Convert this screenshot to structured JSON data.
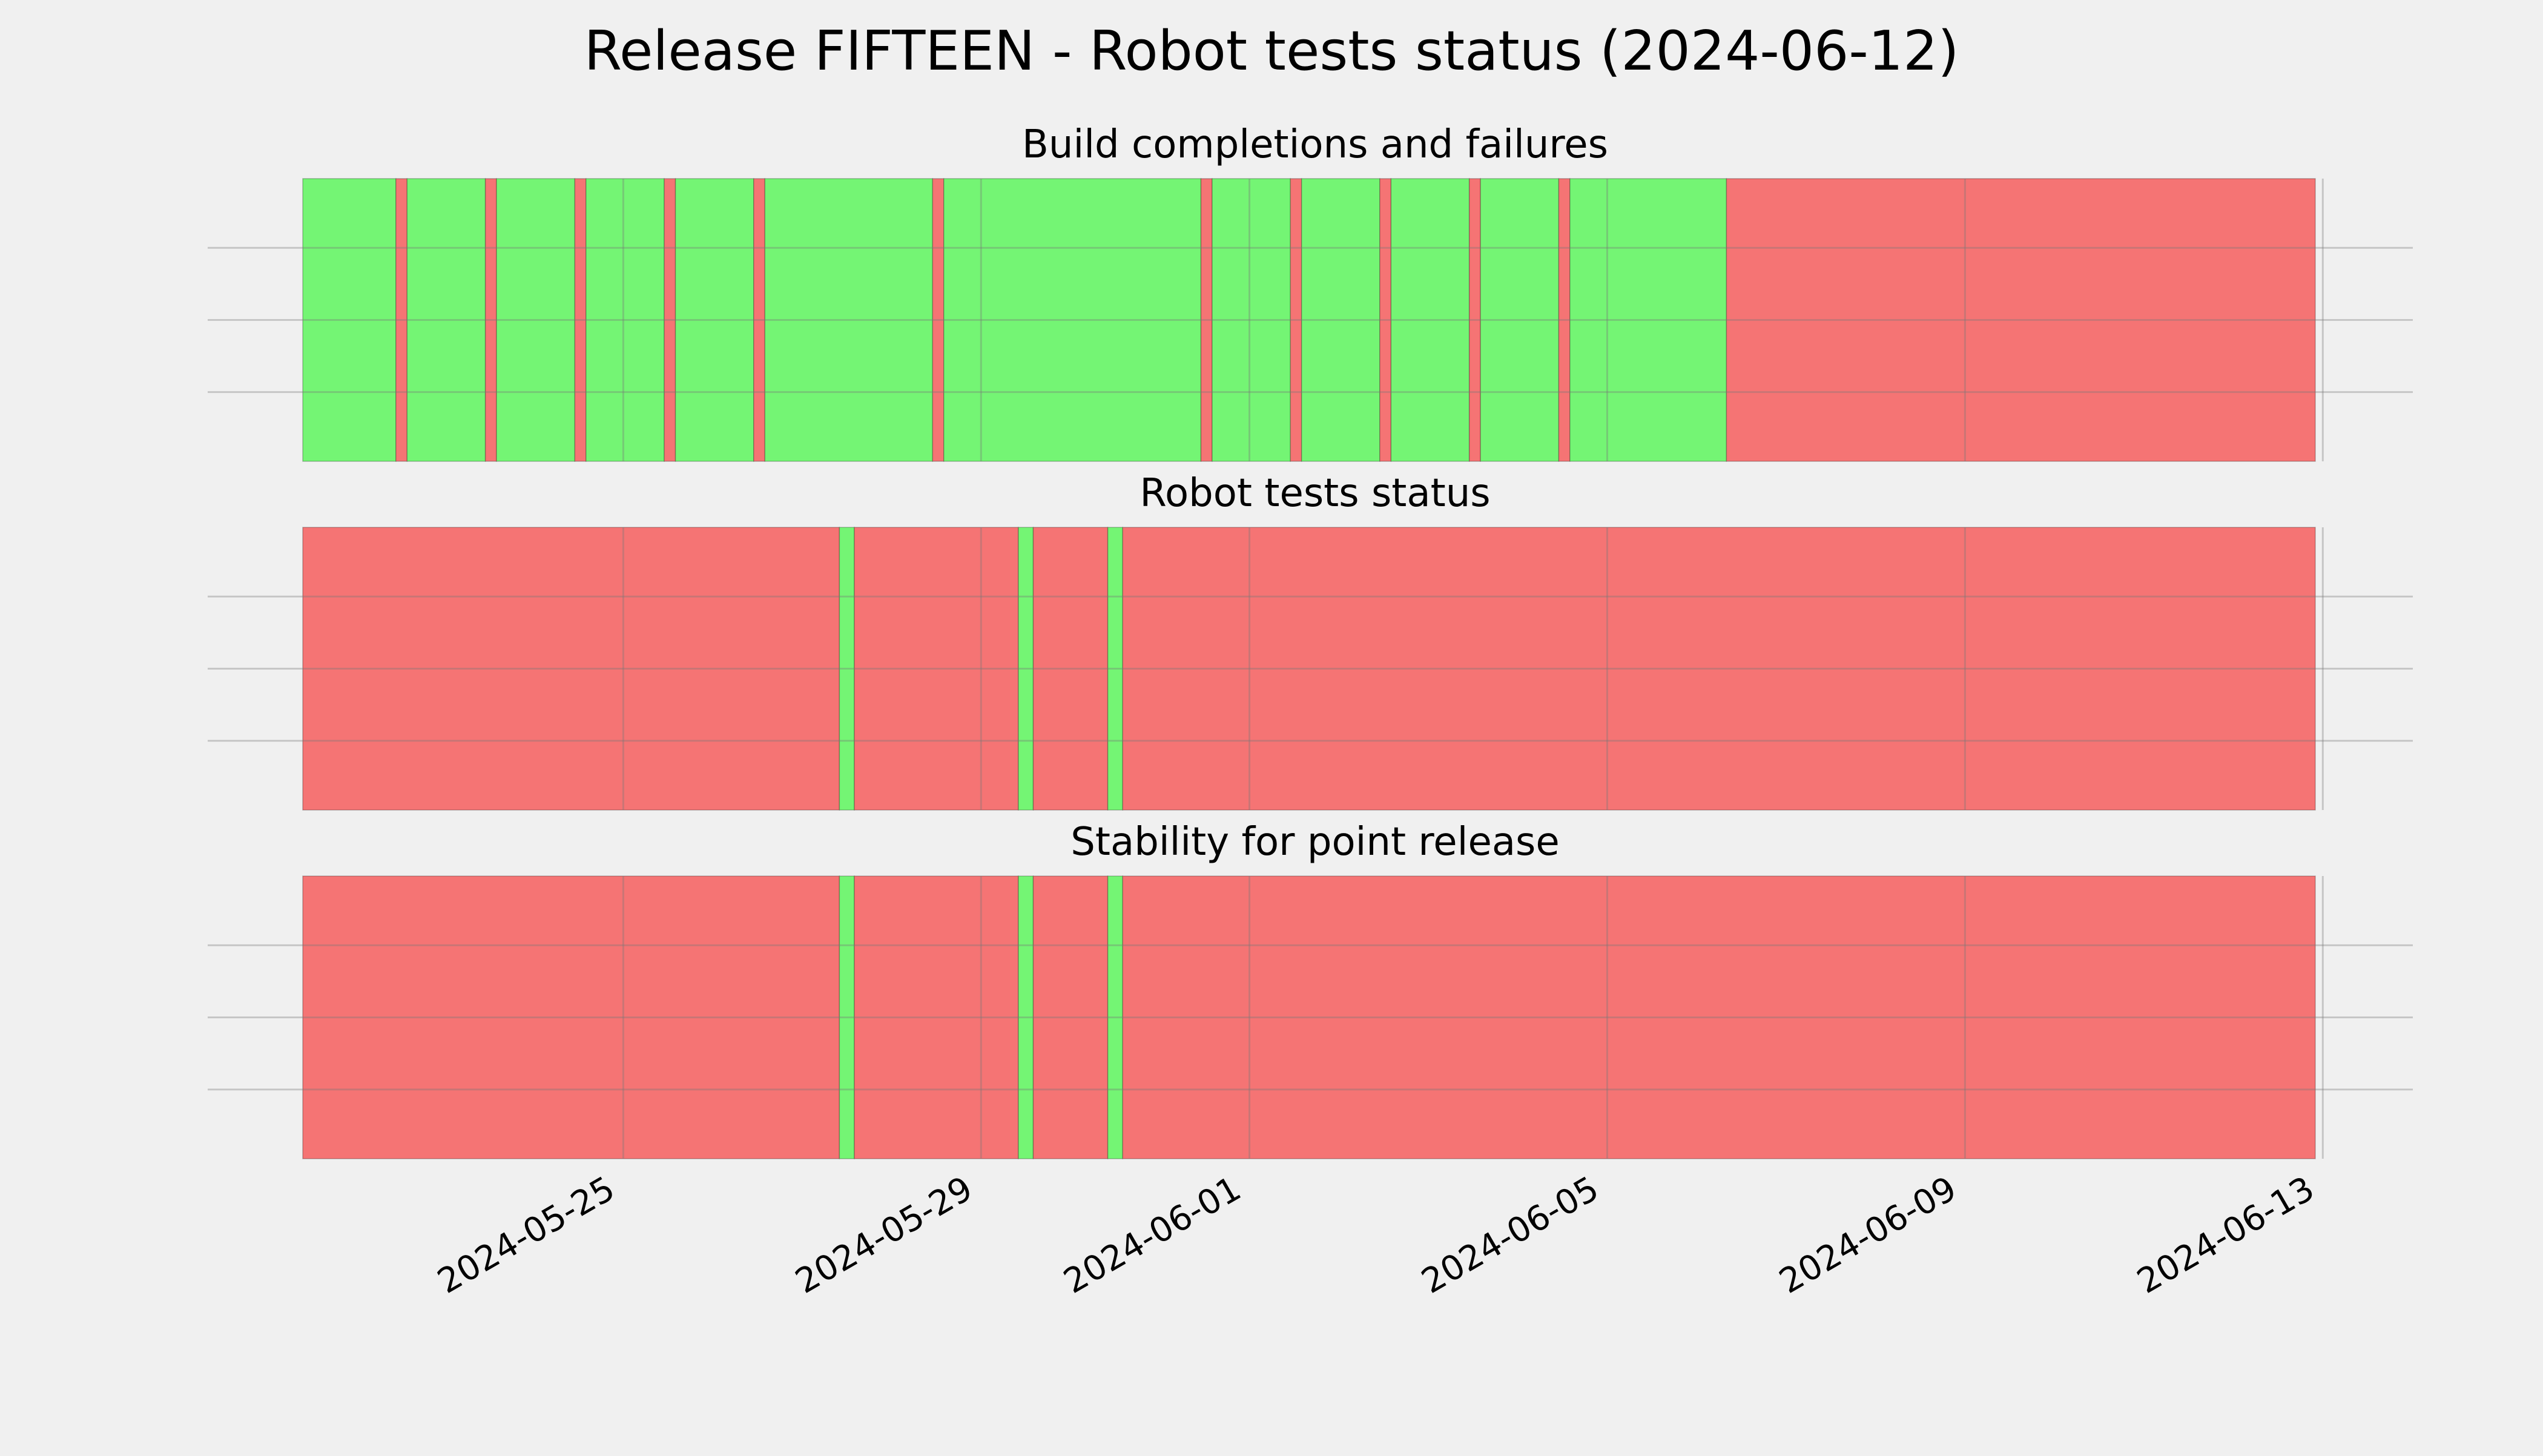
{
  "chart_data": {
    "type": "bar",
    "title": "Release FIFTEEN - Robot tests status (2024-06-12)",
    "xlim": [
      "2024-05-21T10:00",
      "2024-06-12T22:00"
    ],
    "x_ticks": [
      "2024-05-25",
      "2024-05-29",
      "2024-06-01",
      "2024-06-05",
      "2024-06-09",
      "2024-06-13"
    ],
    "grid": true,
    "colors": {
      "pass": "#74f574",
      "fail": "#f57474",
      "background": "#f0f0f0",
      "grid": "#cbcbcb"
    },
    "panels": [
      {
        "title": "Build completions and failures",
        "segments": [
          {
            "start": "2024-05-21T10:00",
            "end": "2024-05-22T11:00",
            "status": "pass"
          },
          {
            "start": "2024-05-22T11:00",
            "end": "2024-05-22T14:00",
            "status": "fail"
          },
          {
            "start": "2024-05-22T14:00",
            "end": "2024-05-23T11:00",
            "status": "pass"
          },
          {
            "start": "2024-05-23T11:00",
            "end": "2024-05-23T14:00",
            "status": "fail"
          },
          {
            "start": "2024-05-23T14:00",
            "end": "2024-05-24T11:00",
            "status": "pass"
          },
          {
            "start": "2024-05-24T11:00",
            "end": "2024-05-24T14:00",
            "status": "fail"
          },
          {
            "start": "2024-05-24T14:00",
            "end": "2024-05-25T11:00",
            "status": "pass"
          },
          {
            "start": "2024-05-25T11:00",
            "end": "2024-05-25T14:00",
            "status": "fail"
          },
          {
            "start": "2024-05-25T14:00",
            "end": "2024-05-26T11:00",
            "status": "pass"
          },
          {
            "start": "2024-05-26T11:00",
            "end": "2024-05-26T14:00",
            "status": "fail"
          },
          {
            "start": "2024-05-26T14:00",
            "end": "2024-05-28T11:00",
            "status": "pass"
          },
          {
            "start": "2024-05-28T11:00",
            "end": "2024-05-28T14:00",
            "status": "fail"
          },
          {
            "start": "2024-05-28T14:00",
            "end": "2024-05-31T11:00",
            "status": "pass"
          },
          {
            "start": "2024-05-31T11:00",
            "end": "2024-05-31T14:00",
            "status": "fail"
          },
          {
            "start": "2024-05-31T14:00",
            "end": "2024-06-01T11:00",
            "status": "pass"
          },
          {
            "start": "2024-06-01T11:00",
            "end": "2024-06-01T14:00",
            "status": "fail"
          },
          {
            "start": "2024-06-01T14:00",
            "end": "2024-06-02T11:00",
            "status": "pass"
          },
          {
            "start": "2024-06-02T11:00",
            "end": "2024-06-02T14:00",
            "status": "fail"
          },
          {
            "start": "2024-06-02T14:00",
            "end": "2024-06-03T11:00",
            "status": "pass"
          },
          {
            "start": "2024-06-03T11:00",
            "end": "2024-06-03T14:00",
            "status": "fail"
          },
          {
            "start": "2024-06-03T14:00",
            "end": "2024-06-04T11:00",
            "status": "pass"
          },
          {
            "start": "2024-06-04T11:00",
            "end": "2024-06-04T14:00",
            "status": "fail"
          },
          {
            "start": "2024-06-04T14:00",
            "end": "2024-06-06T08:00",
            "status": "pass"
          },
          {
            "start": "2024-06-06T08:00",
            "end": "2024-06-12T22:00",
            "status": "fail"
          }
        ]
      },
      {
        "title": "Robot tests status",
        "segments": [
          {
            "start": "2024-05-21T10:00",
            "end": "2024-05-27T10:00",
            "status": "fail"
          },
          {
            "start": "2024-05-27T10:00",
            "end": "2024-05-27T14:00",
            "status": "pass"
          },
          {
            "start": "2024-05-27T14:00",
            "end": "2024-05-29T10:00",
            "status": "fail"
          },
          {
            "start": "2024-05-29T10:00",
            "end": "2024-05-29T14:00",
            "status": "pass"
          },
          {
            "start": "2024-05-29T14:00",
            "end": "2024-05-30T10:00",
            "status": "fail"
          },
          {
            "start": "2024-05-30T10:00",
            "end": "2024-05-30T14:00",
            "status": "pass"
          },
          {
            "start": "2024-05-30T14:00",
            "end": "2024-06-12T22:00",
            "status": "fail"
          }
        ]
      },
      {
        "title": "Stability for point release",
        "segments": [
          {
            "start": "2024-05-21T10:00",
            "end": "2024-05-27T10:00",
            "status": "fail"
          },
          {
            "start": "2024-05-27T10:00",
            "end": "2024-05-27T14:00",
            "status": "pass"
          },
          {
            "start": "2024-05-27T14:00",
            "end": "2024-05-29T10:00",
            "status": "fail"
          },
          {
            "start": "2024-05-29T10:00",
            "end": "2024-05-29T14:00",
            "status": "pass"
          },
          {
            "start": "2024-05-29T14:00",
            "end": "2024-05-30T10:00",
            "status": "fail"
          },
          {
            "start": "2024-05-30T10:00",
            "end": "2024-05-30T14:00",
            "status": "pass"
          },
          {
            "start": "2024-05-30T14:00",
            "end": "2024-06-12T22:00",
            "status": "fail"
          }
        ]
      }
    ]
  }
}
